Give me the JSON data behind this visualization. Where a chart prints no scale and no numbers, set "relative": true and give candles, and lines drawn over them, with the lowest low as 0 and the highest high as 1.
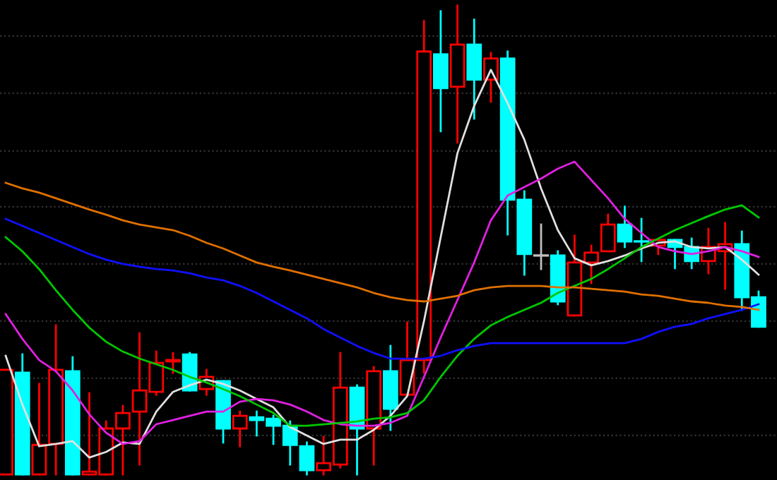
{
  "chart_data": {
    "type": "candlestick",
    "relative": true,
    "categories": [
      null,
      null,
      null,
      null,
      null,
      null,
      null,
      null,
      null,
      null,
      null,
      null,
      null,
      null,
      null,
      null,
      null,
      null,
      null,
      null,
      null,
      null,
      null,
      null,
      null,
      null,
      null,
      null,
      null,
      null,
      null,
      null,
      null,
      null,
      null,
      null,
      null,
      null,
      null,
      null,
      null,
      null,
      null,
      null,
      null,
      null
    ],
    "ohlc": [
      [
        0,
        0.223,
        0,
        0.223
      ],
      [
        0.217,
        0.256,
        0,
        0
      ],
      [
        0,
        0.193,
        0,
        0.063
      ],
      [
        0.065,
        0.318,
        0,
        0.223
      ],
      [
        0.22,
        0.25,
        0,
        0
      ],
      [
        0,
        0.173,
        0,
        0.006
      ],
      [
        0,
        0.113,
        0,
        0.098
      ],
      [
        0.098,
        0.146,
        0,
        0.131
      ],
      [
        0.134,
        0.301,
        0.021,
        0.179
      ],
      [
        0.176,
        0.262,
        0.17,
        0.238
      ],
      [
        0.241,
        0.259,
        0.217,
        0.244
      ],
      [
        0.256,
        0.259,
        0.179,
        0.179
      ],
      [
        0.182,
        0.223,
        0.17,
        0.208
      ],
      [
        0.199,
        0.199,
        0.068,
        0.098
      ],
      [
        0.098,
        0.134,
        0.06,
        0.125
      ],
      [
        0.122,
        0.134,
        0.083,
        0.116
      ],
      [
        0.119,
        0.125,
        0.065,
        0.104
      ],
      [
        0.104,
        0.113,
        0.021,
        0.063
      ],
      [
        0.06,
        0.068,
        0,
        0.009
      ],
      [
        0.009,
        0.08,
        0,
        0.024
      ],
      [
        0.021,
        0.259,
        0.015,
        0.185
      ],
      [
        0.185,
        0.19,
        0,
        0.098
      ],
      [
        0.098,
        0.229,
        0.021,
        0.22
      ],
      [
        0.22,
        0.274,
        0.095,
        0.14
      ],
      [
        0.17,
        0.324,
        0.17,
        0.244
      ],
      [
        0.244,
        0.967,
        0.217,
        0.902
      ],
      [
        0.896,
        0.988,
        0.732,
        0.824
      ],
      [
        0.827,
        1,
        0.708,
        0.917
      ],
      [
        0.917,
        0.97,
        0.759,
        0.842
      ],
      [
        0.842,
        0.899,
        0.795,
        0.887
      ],
      [
        0.887,
        0.902,
        0.512,
        0.586
      ],
      [
        0.586,
        0.604,
        0.426,
        0.47
      ],
      [
        0.467,
        0.533,
        0.438,
        0.467
      ],
      [
        0.467,
        0.476,
        0.363,
        0.369
      ],
      [
        0.339,
        0.509,
        0.339,
        0.452
      ],
      [
        0.452,
        0.488,
        0.408,
        0.473
      ],
      [
        0.476,
        0.554,
        0.476,
        0.533
      ],
      [
        0.533,
        0.571,
        0.485,
        0.497
      ],
      [
        0.497,
        0.545,
        0.455,
        0.497
      ],
      [
        0.488,
        0.5,
        0.47,
        0.5
      ],
      [
        0.5,
        0.5,
        0.44,
        0.485
      ],
      [
        0.485,
        0.503,
        0.44,
        0.455
      ],
      [
        0.455,
        0.524,
        0.429,
        0.485
      ],
      [
        0.476,
        0.536,
        0.396,
        0.491
      ],
      [
        0.491,
        0.518,
        0.351,
        0.378
      ],
      [
        0.378,
        0.39,
        0.315,
        0.315
      ]
    ],
    "colors": [
      "#ff0000",
      "#00ffff",
      "#ff0000",
      "#ff0000",
      "#00ffff",
      "#ff0000",
      "#ff0000",
      "#ff0000",
      "#ff0000",
      "#ff0000",
      "#ff0000",
      "#00ffff",
      "#ff0000",
      "#00ffff",
      "#ff0000",
      "#00ffff",
      "#00ffff",
      "#00ffff",
      "#00ffff",
      "#ff0000",
      "#ff0000",
      "#00ffff",
      "#ff0000",
      "#00ffff",
      "#ff0000",
      "#ff0000",
      "#00ffff",
      "#ff0000",
      "#00ffff",
      "#ff0000",
      "#00ffff",
      "#00ffff",
      "#c0c0c0",
      "#00ffff",
      "#ff0000",
      "#ff0000",
      "#ff0000",
      "#00ffff",
      "#00ffff",
      "#ff0000",
      "#00ffff",
      "#00ffff",
      "#ff0000",
      "#ff0000",
      "#00ffff",
      "#00ffff"
    ],
    "series": [
      {
        "type": "line",
        "color": "#e0e0e0",
        "values": [
          0.253,
          0.149,
          0.06,
          0.065,
          0.071,
          0.036,
          0.048,
          0.068,
          0.065,
          0.134,
          0.176,
          0.19,
          0.202,
          0.193,
          0.179,
          0.161,
          0.143,
          0.101,
          0.083,
          0.065,
          0.074,
          0.074,
          0.095,
          0.125,
          0.167,
          0.327,
          0.506,
          0.685,
          0.786,
          0.863,
          0.792,
          0.714,
          0.61,
          0.521,
          0.461,
          0.446,
          0.455,
          0.467,
          0.482,
          0.494,
          0.497,
          0.485,
          0.482,
          0.485,
          0.458,
          0.426
        ]
      },
      {
        "type": "line",
        "color": "#e020e0",
        "values": [
          0.342,
          0.289,
          0.244,
          0.22,
          0.179,
          0.128,
          0.089,
          0.065,
          0.071,
          0.107,
          0.116,
          0.125,
          0.134,
          0.134,
          0.155,
          0.161,
          0.158,
          0.149,
          0.134,
          0.116,
          0.107,
          0.104,
          0.104,
          0.11,
          0.125,
          0.208,
          0.292,
          0.372,
          0.452,
          0.542,
          0.595,
          0.613,
          0.631,
          0.652,
          0.667,
          0.628,
          0.589,
          0.545,
          0.515,
          0.485,
          0.476,
          0.47,
          0.476,
          0.485,
          0.476,
          0.464
        ]
      },
      {
        "type": "line",
        "color": "#00c800",
        "values": [
          0.506,
          0.476,
          0.438,
          0.393,
          0.351,
          0.313,
          0.283,
          0.262,
          0.247,
          0.235,
          0.223,
          0.208,
          0.196,
          0.182,
          0.167,
          0.149,
          0.131,
          0.104,
          0.104,
          0.107,
          0.11,
          0.113,
          0.119,
          0.122,
          0.131,
          0.158,
          0.208,
          0.253,
          0.289,
          0.318,
          0.336,
          0.351,
          0.366,
          0.387,
          0.402,
          0.417,
          0.438,
          0.461,
          0.485,
          0.503,
          0.521,
          0.536,
          0.551,
          0.565,
          0.574,
          0.548
        ]
      },
      {
        "type": "line",
        "color": "#1010ff",
        "values": [
          0.545,
          0.53,
          0.515,
          0.5,
          0.485,
          0.47,
          0.458,
          0.449,
          0.443,
          0.438,
          0.435,
          0.429,
          0.42,
          0.414,
          0.402,
          0.387,
          0.369,
          0.351,
          0.333,
          0.31,
          0.292,
          0.274,
          0.259,
          0.247,
          0.247,
          0.247,
          0.253,
          0.265,
          0.274,
          0.28,
          0.28,
          0.28,
          0.28,
          0.28,
          0.28,
          0.28,
          0.28,
          0.28,
          0.289,
          0.304,
          0.315,
          0.321,
          0.333,
          0.342,
          0.351,
          0.363
        ]
      },
      {
        "type": "line",
        "color": "#e07000",
        "values": [
          0.622,
          0.61,
          0.601,
          0.589,
          0.577,
          0.565,
          0.554,
          0.542,
          0.533,
          0.527,
          0.521,
          0.509,
          0.494,
          0.482,
          0.467,
          0.452,
          0.443,
          0.435,
          0.426,
          0.417,
          0.408,
          0.399,
          0.387,
          0.378,
          0.372,
          0.369,
          0.375,
          0.381,
          0.393,
          0.399,
          0.402,
          0.402,
          0.402,
          0.399,
          0.399,
          0.396,
          0.393,
          0.39,
          0.384,
          0.381,
          0.375,
          0.369,
          0.366,
          0.36,
          0.357,
          0.351
        ]
      }
    ],
    "ref_lines": [
      {
        "axis": "y",
        "value": 0.935,
        "color": "#333333",
        "line_style": "dotted"
      },
      {
        "axis": "y",
        "value": 0.813,
        "color": "#333333",
        "line_style": "dotted"
      },
      {
        "axis": "y",
        "value": 0.69,
        "color": "#333333",
        "line_style": "dotted"
      },
      {
        "axis": "y",
        "value": 0.571,
        "color": "#333333",
        "line_style": "dotted"
      },
      {
        "axis": "y",
        "value": 0.449,
        "color": "#333333",
        "line_style": "dotted"
      },
      {
        "axis": "y",
        "value": 0.327,
        "color": "#333333",
        "line_style": "dotted"
      },
      {
        "axis": "y",
        "value": 0.205,
        "color": "#333333",
        "line_style": "dotted"
      },
      {
        "axis": "y",
        "value": 0.083,
        "color": "#333333",
        "line_style": "dotted"
      }
    ]
  }
}
